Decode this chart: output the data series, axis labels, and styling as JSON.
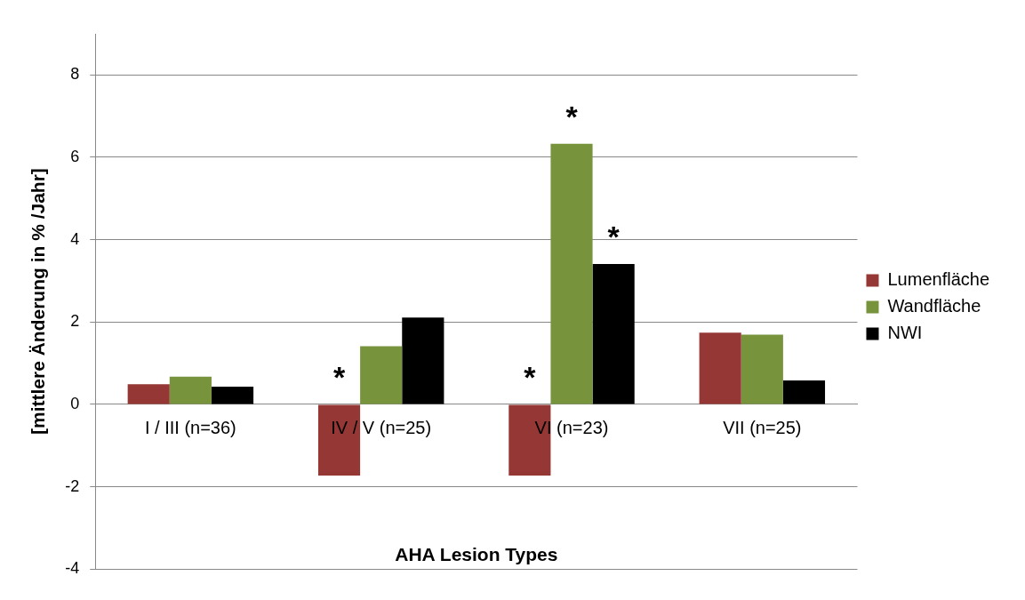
{
  "chart_data": {
    "type": "bar",
    "categories": [
      "I / III (n=36)",
      "IV / V (n=25)",
      "VI (n=23)",
      "VII (n=25)"
    ],
    "series": [
      {
        "name": "Lumenfläche",
        "color": "#953735",
        "values": [
          0.49,
          -1.73,
          -1.73,
          1.74
        ]
      },
      {
        "name": "Wandfläche",
        "color": "#77933c",
        "values": [
          0.67,
          1.41,
          6.33,
          1.69
        ]
      },
      {
        "name": "NWI",
        "color": "#000000",
        "values": [
          0.43,
          2.11,
          3.41,
          0.58
        ]
      }
    ],
    "xlabel": "AHA Lesion Types",
    "ylabel": "[mittlere Änderung in % /Jahr]",
    "ylim": [
      -4,
      9
    ],
    "yticks": [
      -4,
      -2,
      0,
      2,
      4,
      6,
      8
    ],
    "grid": "y",
    "legend": "right",
    "annotations": [
      "*",
      "*",
      "*",
      "*"
    ]
  }
}
